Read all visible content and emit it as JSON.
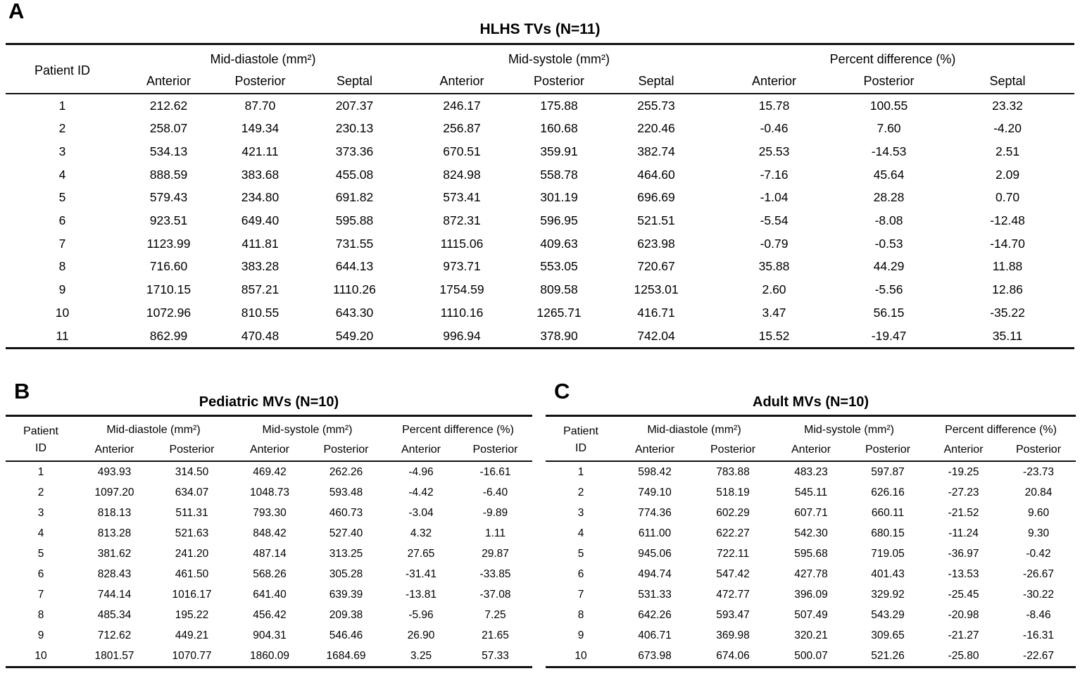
{
  "panels": {
    "a": {
      "label": "A",
      "title": "HLHS TVs (N=11)",
      "patient_header": "Patient ID",
      "groups": {
        "diastole": "Mid-diastole (mm²)",
        "systole": "Mid-systole (mm²)",
        "percent": "Percent difference (%)"
      },
      "subheaders": {
        "anterior": "Anterior",
        "posterior": "Posterior",
        "septal": "Septal"
      },
      "rows": [
        [
          "1",
          "212.62",
          "87.70",
          "207.37",
          "246.17",
          "175.88",
          "255.73",
          "15.78",
          "100.55",
          "23.32"
        ],
        [
          "2",
          "258.07",
          "149.34",
          "230.13",
          "256.87",
          "160.68",
          "220.46",
          "-0.46",
          "7.60",
          "-4.20"
        ],
        [
          "3",
          "534.13",
          "421.11",
          "373.36",
          "670.51",
          "359.91",
          "382.74",
          "25.53",
          "-14.53",
          "2.51"
        ],
        [
          "4",
          "888.59",
          "383.68",
          "455.08",
          "824.98",
          "558.78",
          "464.60",
          "-7.16",
          "45.64",
          "2.09"
        ],
        [
          "5",
          "579.43",
          "234.80",
          "691.82",
          "573.41",
          "301.19",
          "696.69",
          "-1.04",
          "28.28",
          "0.70"
        ],
        [
          "6",
          "923.51",
          "649.40",
          "595.88",
          "872.31",
          "596.95",
          "521.51",
          "-5.54",
          "-8.08",
          "-12.48"
        ],
        [
          "7",
          "1123.99",
          "411.81",
          "731.55",
          "1115.06",
          "409.63",
          "623.98",
          "-0.79",
          "-0.53",
          "-14.70"
        ],
        [
          "8",
          "716.60",
          "383.28",
          "644.13",
          "973.71",
          "553.05",
          "720.67",
          "35.88",
          "44.29",
          "11.88"
        ],
        [
          "9",
          "1710.15",
          "857.21",
          "1110.26",
          "1754.59",
          "809.58",
          "1253.01",
          "2.60",
          "-5.56",
          "12.86"
        ],
        [
          "10",
          "1072.96",
          "810.55",
          "643.30",
          "1110.16",
          "1265.71",
          "416.71",
          "3.47",
          "56.15",
          "-35.22"
        ],
        [
          "11",
          "862.99",
          "470.48",
          "549.20",
          "996.94",
          "378.90",
          "742.04",
          "15.52",
          "-19.47",
          "35.11"
        ]
      ]
    },
    "b": {
      "label": "B",
      "title": "Pediatric MVs (N=10)",
      "patient_header_line1": "Patient",
      "patient_header_line2": "ID",
      "groups": {
        "diastole": "Mid-diastole (mm²)",
        "systole": "Mid-systole (mm²)",
        "percent": "Percent difference (%)"
      },
      "subheaders": {
        "anterior": "Anterior",
        "posterior": "Posterior"
      },
      "rows": [
        [
          "1",
          "493.93",
          "314.50",
          "469.42",
          "262.26",
          "-4.96",
          "-16.61"
        ],
        [
          "2",
          "1097.20",
          "634.07",
          "1048.73",
          "593.48",
          "-4.42",
          "-6.40"
        ],
        [
          "3",
          "818.13",
          "511.31",
          "793.30",
          "460.73",
          "-3.04",
          "-9.89"
        ],
        [
          "4",
          "813.28",
          "521.63",
          "848.42",
          "527.40",
          "4.32",
          "1.11"
        ],
        [
          "5",
          "381.62",
          "241.20",
          "487.14",
          "313.25",
          "27.65",
          "29.87"
        ],
        [
          "6",
          "828.43",
          "461.50",
          "568.26",
          "305.28",
          "-31.41",
          "-33.85"
        ],
        [
          "7",
          "744.14",
          "1016.17",
          "641.40",
          "639.39",
          "-13.81",
          "-37.08"
        ],
        [
          "8",
          "485.34",
          "195.22",
          "456.42",
          "209.38",
          "-5.96",
          "7.25"
        ],
        [
          "9",
          "712.62",
          "449.21",
          "904.31",
          "546.46",
          "26.90",
          "21.65"
        ],
        [
          "10",
          "1801.57",
          "1070.77",
          "1860.09",
          "1684.69",
          "3.25",
          "57.33"
        ]
      ]
    },
    "c": {
      "label": "C",
      "title": "Adult MVs (N=10)",
      "patient_header_line1": "Patient",
      "patient_header_line2": "ID",
      "groups": {
        "diastole": "Mid-diastole (mm²)",
        "systole": "Mid-systole (mm²)",
        "percent": "Percent difference (%)"
      },
      "subheaders": {
        "anterior": "Anterior",
        "posterior": "Posterior"
      },
      "rows": [
        [
          "1",
          "598.42",
          "783.88",
          "483.23",
          "597.87",
          "-19.25",
          "-23.73"
        ],
        [
          "2",
          "749.10",
          "518.19",
          "545.11",
          "626.16",
          "-27.23",
          "20.84"
        ],
        [
          "3",
          "774.36",
          "602.29",
          "607.71",
          "660.11",
          "-21.52",
          "9.60"
        ],
        [
          "4",
          "611.00",
          "622.27",
          "542.30",
          "680.15",
          "-11.24",
          "9.30"
        ],
        [
          "5",
          "945.06",
          "722.11",
          "595.68",
          "719.05",
          "-36.97",
          "-0.42"
        ],
        [
          "6",
          "494.74",
          "547.42",
          "427.78",
          "401.43",
          "-13.53",
          "-26.67"
        ],
        [
          "7",
          "531.33",
          "472.77",
          "396.09",
          "329.92",
          "-25.45",
          "-30.22"
        ],
        [
          "8",
          "642.26",
          "593.47",
          "507.49",
          "543.29",
          "-20.98",
          "-8.46"
        ],
        [
          "9",
          "406.71",
          "369.98",
          "320.21",
          "309.65",
          "-21.27",
          "-16.31"
        ],
        [
          "10",
          "673.98",
          "674.06",
          "500.07",
          "521.26",
          "-25.80",
          "-22.67"
        ]
      ]
    }
  }
}
